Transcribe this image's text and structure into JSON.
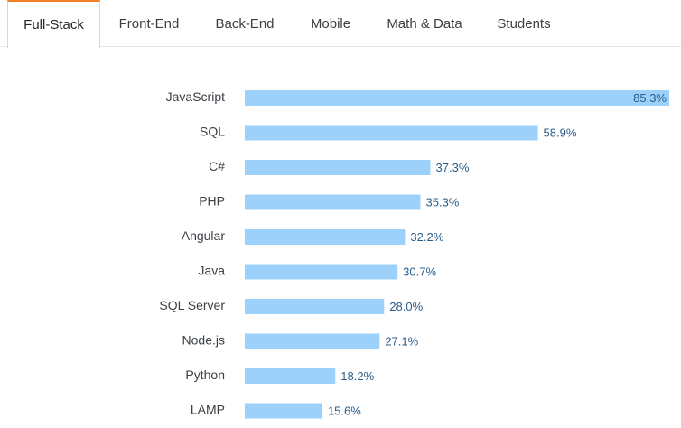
{
  "tabs": [
    {
      "label": "Full-Stack",
      "active": true
    },
    {
      "label": "Front-End",
      "active": false
    },
    {
      "label": "Back-End",
      "active": false
    },
    {
      "label": "Mobile",
      "active": false
    },
    {
      "label": "Math & Data",
      "active": false
    },
    {
      "label": "Students",
      "active": false
    }
  ],
  "colors": {
    "bar": "#9cd1fb",
    "value_label": "#2a5d8a",
    "category_label": "#3b4045",
    "active_tab_accent": "#f48024"
  },
  "chart_data": {
    "type": "bar",
    "orientation": "horizontal",
    "title": "",
    "xlabel": "",
    "ylabel": "",
    "categories": [
      "JavaScript",
      "SQL",
      "C#",
      "PHP",
      "Angular",
      "Java",
      "SQL Server",
      "Node.js",
      "Python",
      "LAMP"
    ],
    "values": [
      85.3,
      58.9,
      37.3,
      35.3,
      32.2,
      30.7,
      28.0,
      27.1,
      18.2,
      15.6
    ],
    "value_labels": [
      "85.3%",
      "58.9%",
      "37.3%",
      "35.3%",
      "32.2%",
      "30.7%",
      "28.0%",
      "27.1%",
      "18.2%",
      "15.6%"
    ],
    "xlim": [
      0,
      85.3
    ],
    "grid": false,
    "legend": "none"
  }
}
